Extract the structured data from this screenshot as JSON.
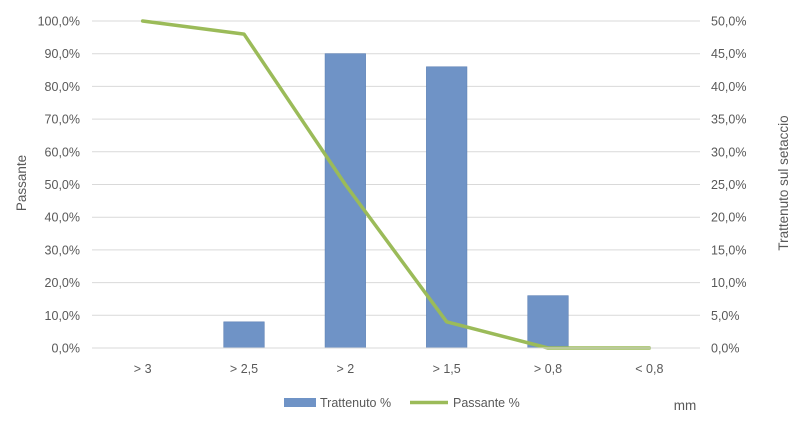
{
  "chart_data": {
    "type": "bar+line",
    "categories": [
      "> 3",
      "> 2,5",
      "> 2",
      "> 1,5",
      "> 0,8",
      "< 0,8"
    ],
    "series": [
      {
        "name": "Trattenuto %",
        "type": "bar",
        "axis": "right",
        "values": [
          0,
          4,
          45,
          43,
          8,
          0
        ],
        "color": "#6f93c6"
      },
      {
        "name": "Passante %",
        "type": "line",
        "axis": "left",
        "values": [
          100,
          96,
          50,
          8,
          0,
          0
        ],
        "color": "#9bbb59"
      }
    ],
    "y_left": {
      "label": "Passante",
      "ylim": [
        0,
        100
      ],
      "ticks": [
        "0,0%",
        "10,0%",
        "20,0%",
        "30,0%",
        "40,0%",
        "50,0%",
        "60,0%",
        "70,0%",
        "80,0%",
        "90,0%",
        "100,0%"
      ]
    },
    "y_right": {
      "label": "Trattenuto sul setaccio",
      "ylim": [
        0,
        50
      ],
      "ticks": [
        "0,0%",
        "5,0%",
        "10,0%",
        "15,0%",
        "20,0%",
        "25,0%",
        "30,0%",
        "35,0%",
        "40,0%",
        "45,0%",
        "50,0%"
      ]
    },
    "xlabel": "mm",
    "grid": true,
    "legend_position": "bottom"
  }
}
